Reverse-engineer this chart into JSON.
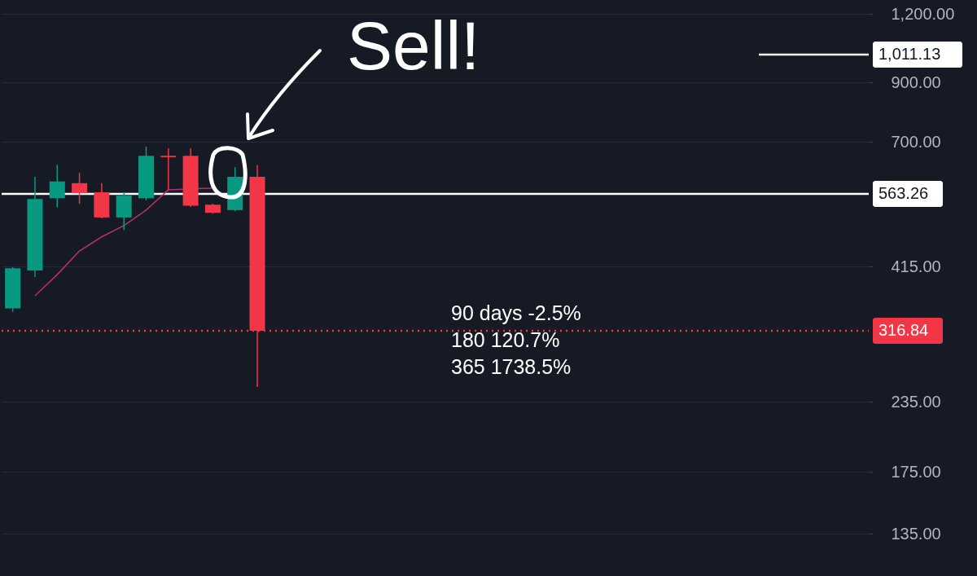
{
  "chart_data": {
    "type": "candlestick",
    "categories": [
      null,
      null,
      null,
      null,
      null,
      null,
      null,
      null,
      null,
      null,
      null,
      null,
      null,
      null,
      null,
      null,
      null,
      null,
      null,
      null,
      null,
      null,
      null,
      null,
      null,
      null,
      null,
      null,
      null,
      null,
      null,
      null,
      null,
      null,
      null,
      null,
      null,
      null,
      null
    ],
    "ohlc": [
      [
        348,
        414,
        343,
        412
      ],
      [
        408,
        605,
        397,
        551
      ],
      [
        553,
        636,
        532,
        593
      ],
      [
        589,
        615,
        540,
        565
      ],
      [
        567,
        589,
        508,
        510
      ],
      [
        510,
        567,
        484,
        559
      ],
      [
        553,
        687,
        548,
        661
      ],
      [
        661,
        682,
        573,
        657
      ],
      [
        661,
        682,
        533,
        536
      ],
      [
        538,
        540,
        518,
        520
      ],
      [
        526,
        630,
        524,
        605
      ],
      [
        605,
        636,
        250,
        316.84
      ],
      null,
      null,
      null,
      null,
      null,
      null,
      null,
      null,
      null,
      null,
      null,
      null,
      null,
      null,
      null,
      null,
      null,
      null,
      null,
      null,
      null,
      null,
      null,
      null,
      null,
      null,
      null
    ],
    "colors": [
      "#089981",
      "#089981",
      "#089981",
      "#f23645",
      "#f23645",
      "#089981",
      "#089981",
      "#f23645",
      "#f23645",
      "#f23645",
      "#089981",
      "#f23645",
      null,
      null,
      null,
      null,
      null,
      null,
      null,
      null,
      null,
      null,
      null,
      null,
      null,
      null,
      null,
      null,
      null,
      null,
      null,
      null,
      null,
      null,
      null,
      null,
      null,
      null,
      null
    ],
    "series": [
      {
        "type": "line",
        "color": "#b7306e",
        "values": [
          null,
          367,
          401,
          443,
          470,
          493,
          526,
          573,
          null,
          577,
          null,
          null,
          null,
          null,
          null,
          null,
          null,
          null,
          null,
          null,
          null,
          null,
          null,
          null,
          null,
          null,
          null,
          null,
          null,
          null,
          null,
          null,
          null,
          null,
          null,
          null,
          null,
          null,
          null
        ]
      }
    ],
    "log": true,
    "ylim": [
      113,
      1272
    ],
    "yticks": [
      {
        "value": 135,
        "label": "135.00"
      },
      {
        "value": 175,
        "label": "175.00"
      },
      {
        "value": 235,
        "label": "235.00"
      },
      {
        "value": 415,
        "label": "415.00"
      },
      {
        "value": 700,
        "label": "700.00"
      },
      {
        "value": 900,
        "label": "900.00"
      },
      {
        "value": 1200,
        "label": "1,200.00"
      }
    ],
    "grid": "y",
    "tick_labels": "y",
    "ref_lines": [
      {
        "axis": "y",
        "value": 563.26,
        "label": "563.26",
        "color": "#ffffff",
        "line_style": "solid"
      },
      {
        "axis": "y",
        "value": 1011.13,
        "label": "1,011.13",
        "color": "#ffffff",
        "line_style": "solid"
      },
      {
        "axis": "y",
        "value": 316.84,
        "label": "316.84",
        "color": "#f23645",
        "line_style": "dotted"
      }
    ],
    "annotations": [
      "Sell!",
      "90 days -2.5%",
      "180 120.7%",
      "365 1738.5%"
    ]
  }
}
